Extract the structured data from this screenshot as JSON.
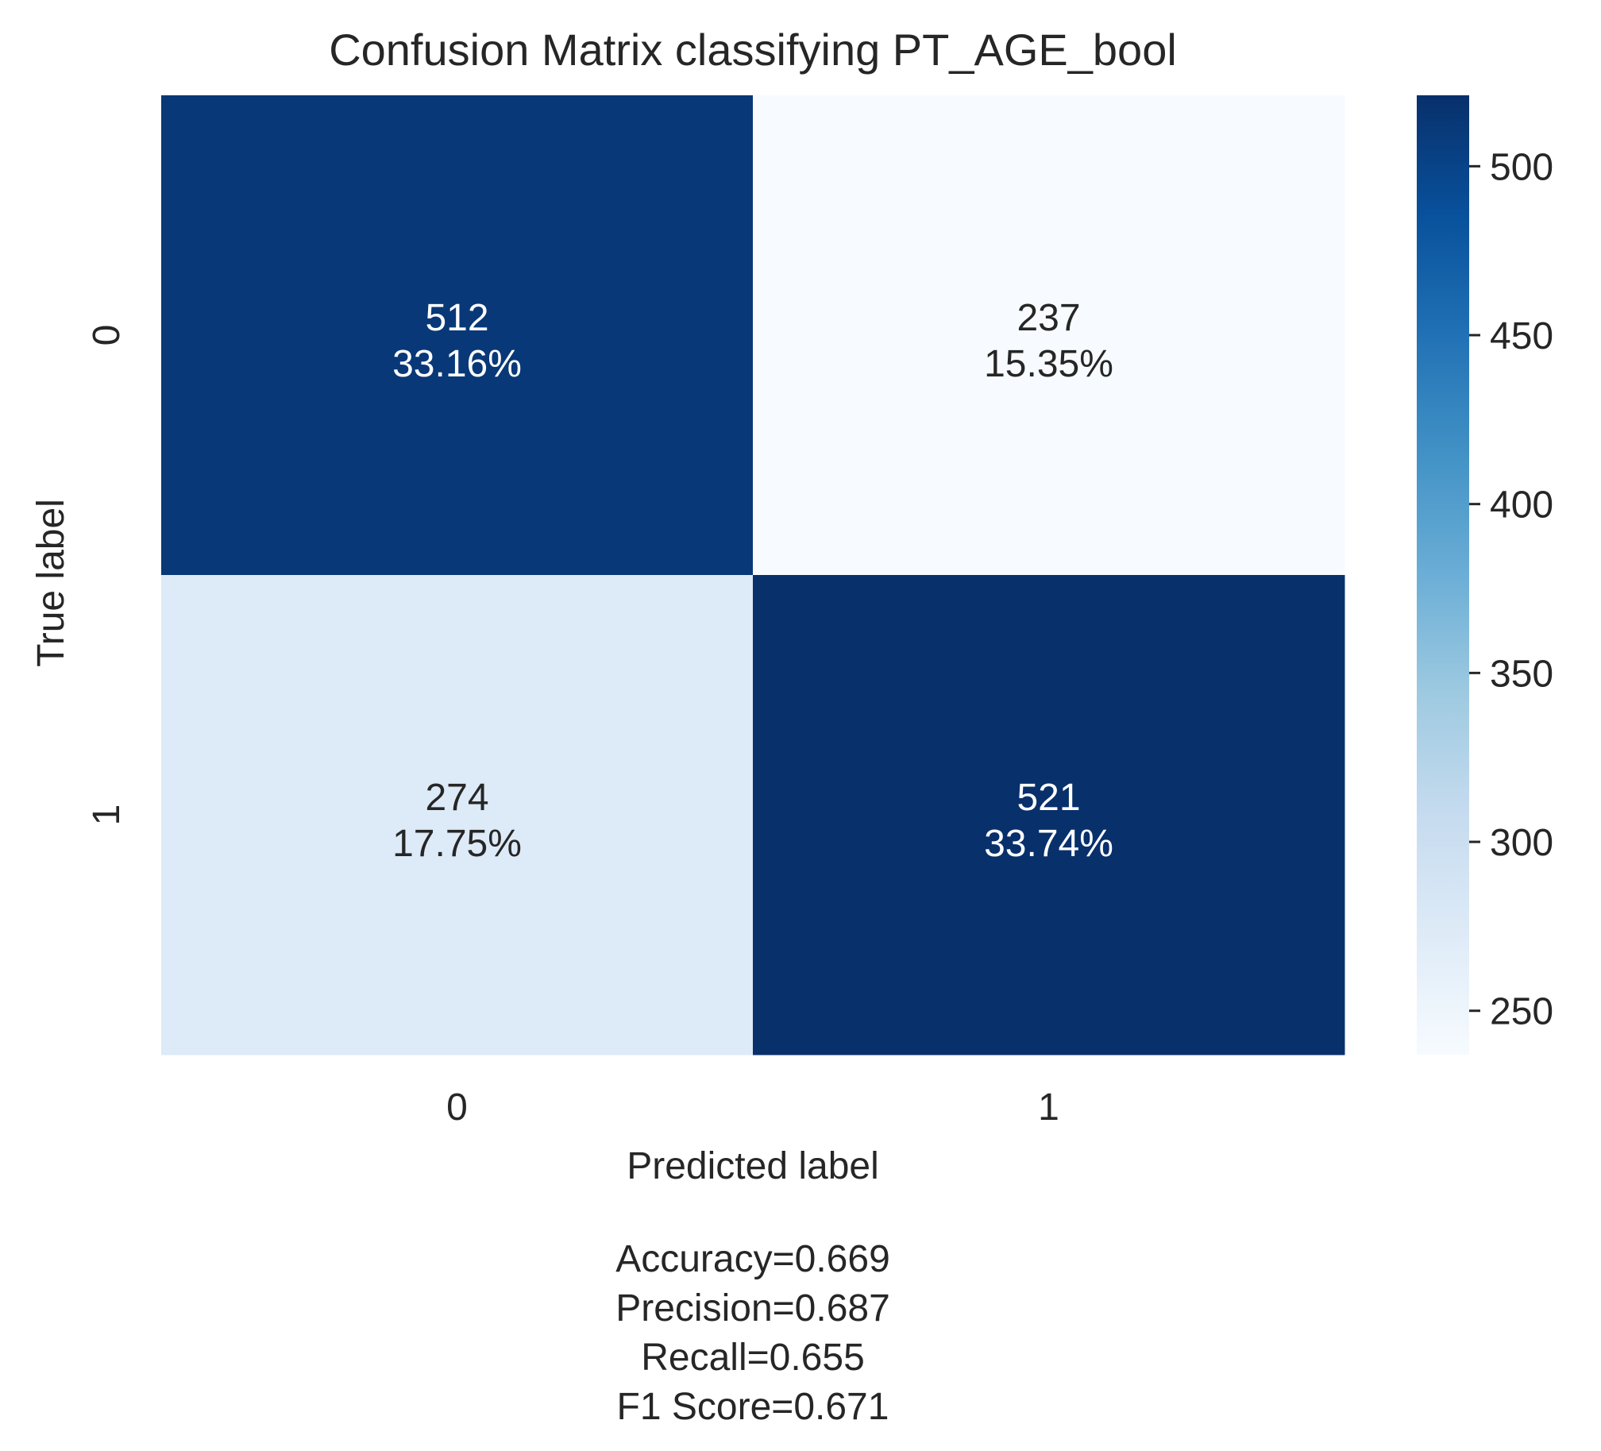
{
  "chart_data": {
    "type": "heatmap",
    "title": "Confusion Matrix classifying PT_AGE_bool",
    "xlabel": "Predicted label",
    "ylabel": "True label",
    "x_categories": [
      "0",
      "1"
    ],
    "y_categories": [
      "0",
      "1"
    ],
    "values": [
      [
        512,
        237
      ],
      [
        274,
        521
      ]
    ],
    "percentages": [
      [
        "33.16%",
        "15.35%"
      ],
      [
        "17.75%",
        "33.74%"
      ]
    ],
    "colormap": "Blues",
    "colorbar": {
      "range": [
        237,
        521
      ],
      "ticks": [
        "250",
        "300",
        "350",
        "400",
        "450",
        "500"
      ],
      "tick_values": [
        250,
        300,
        350,
        400,
        450,
        500
      ]
    },
    "metrics": [
      "Accuracy=0.669",
      "Precision=0.687",
      "Recall=0.655",
      "F1 Score=0.671"
    ],
    "grid": false
  }
}
